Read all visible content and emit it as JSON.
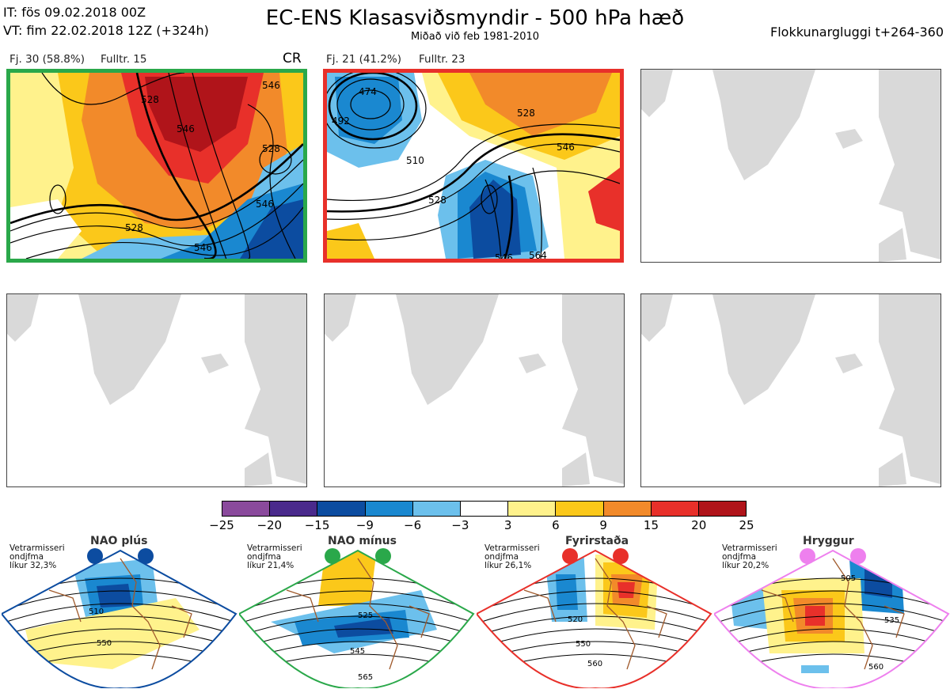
{
  "header": {
    "it_line": "IT: fös 09.02.2018 00Z",
    "vt_line": "VT: fim 22.02.2018 12Z  (+324h)",
    "title": "EC-ENS Klasasviðsmyndir - 500 hPa hæð",
    "subtitle": "Miðað við feb 1981-2010",
    "window": "Flokkunargluggi t+264-360"
  },
  "clusters": [
    {
      "fj": "Fj. 30 (58.8%)",
      "fulltr": "Fulltr. 15",
      "tag": "CR",
      "border": "#2aa84a",
      "contour_labels": [
        "528",
        "546",
        "528",
        "528",
        "546",
        "546",
        "546"
      ]
    },
    {
      "fj": "Fj. 21 (41.2%)",
      "fulltr": "Fulltr. 23",
      "tag": "",
      "border": "#e8302a",
      "contour_labels": [
        "474",
        "492",
        "510",
        "528",
        "528",
        "546",
        "546",
        "564"
      ]
    }
  ],
  "colorbar": {
    "colors": [
      "#8a4a9c",
      "#4a2a8c",
      "#0c4ca0",
      "#1a88d0",
      "#6cc0ec",
      "#ffffff",
      "#fff28c",
      "#fbc81a",
      "#f28a2a",
      "#e8302a",
      "#b0141a"
    ],
    "ticks": [
      "−25",
      "−20",
      "−15",
      "−9",
      "−6",
      "−3",
      "3",
      "6",
      "9",
      "15",
      "20",
      "25"
    ]
  },
  "regimes": [
    {
      "name": "NAO plús",
      "season": "Vetrarmisseri",
      "mean": "ondjfma",
      "prob": "líkur 32,3%",
      "color": "#0c4ca0",
      "labels": [
        "510",
        "550"
      ]
    },
    {
      "name": "NAO mínus",
      "season": "Vetrarmisseri",
      "mean": "ondjfma",
      "prob": "líkur 21,4%",
      "color": "#2aa84a",
      "labels": [
        "525",
        "545",
        "565"
      ]
    },
    {
      "name": "Fyrirstaða",
      "season": "Vetrarmisseri",
      "mean": "ondjfma",
      "prob": "líkur 26,1%",
      "color": "#e8302a",
      "labels": [
        "520",
        "550",
        "560"
      ]
    },
    {
      "name": "Hryggur",
      "season": "Vetrarmisseri",
      "mean": "ondjfma",
      "prob": "líkur 20,2%",
      "color": "#ee80ee",
      "labels": [
        "505",
        "535",
        "560"
      ]
    }
  ]
}
